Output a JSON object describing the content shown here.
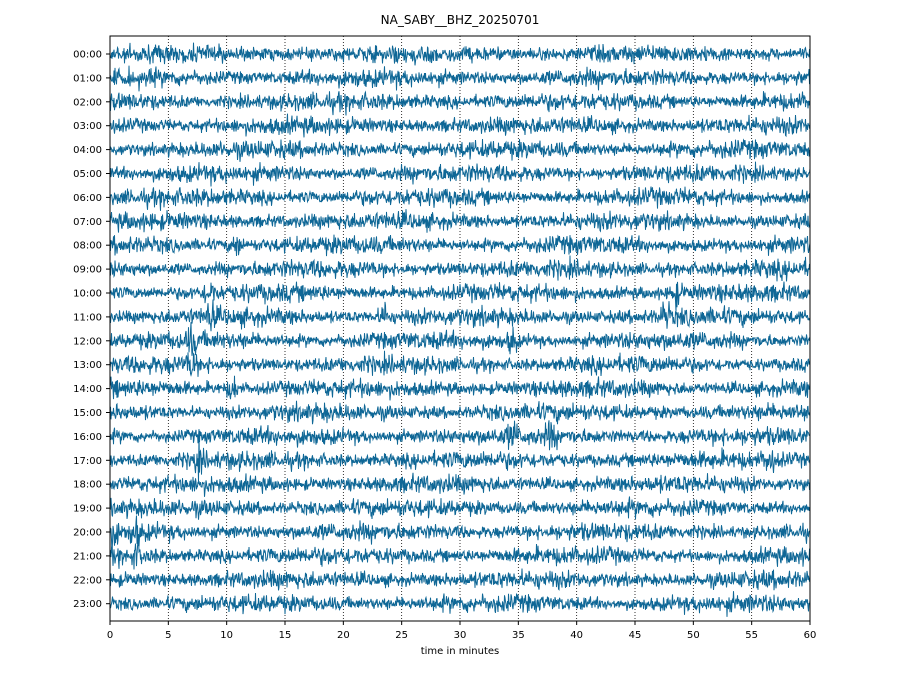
{
  "chart_data": {
    "type": "line",
    "title": "NA_SABY__BHZ_20250701",
    "xlabel": "time in minutes",
    "ylabel": "",
    "xlim": [
      0,
      60
    ],
    "x_ticks": [
      0,
      5,
      10,
      15,
      20,
      25,
      30,
      35,
      40,
      45,
      50,
      55,
      60
    ],
    "y_tick_labels": [
      "00:00",
      "01:00",
      "02:00",
      "03:00",
      "04:00",
      "05:00",
      "06:00",
      "07:00",
      "08:00",
      "09:00",
      "10:00",
      "11:00",
      "12:00",
      "13:00",
      "14:00",
      "15:00",
      "16:00",
      "17:00",
      "18:00",
      "19:00",
      "20:00",
      "21:00",
      "22:00",
      "23:00"
    ],
    "grid": "vertical dotted at each x tick",
    "trace_color": "#0f6796",
    "series": [
      {
        "name": "00:00",
        "events": []
      },
      {
        "name": "01:00",
        "events": []
      },
      {
        "name": "02:00",
        "events": []
      },
      {
        "name": "03:00",
        "events": []
      },
      {
        "name": "04:00",
        "events": []
      },
      {
        "name": "05:00",
        "events": []
      },
      {
        "name": "06:00",
        "events": []
      },
      {
        "name": "07:00",
        "events": []
      },
      {
        "name": "08:00",
        "events": [
          10.8
        ]
      },
      {
        "name": "09:00",
        "events": []
      },
      {
        "name": "10:00",
        "events": [
          8.5,
          48.5
        ]
      },
      {
        "name": "11:00",
        "events": [
          8.6,
          23.5,
          47.6
        ]
      },
      {
        "name": "12:00",
        "events": [
          7.0,
          34.5
        ]
      },
      {
        "name": "13:00",
        "events": [
          7.0
        ]
      },
      {
        "name": "14:00",
        "events": [
          10.5
        ]
      },
      {
        "name": "15:00",
        "events": []
      },
      {
        "name": "16:00",
        "events": [
          34.5,
          37.8
        ]
      },
      {
        "name": "17:00",
        "events": [
          7.6,
          56.5
        ]
      },
      {
        "name": "18:00",
        "events": []
      },
      {
        "name": "19:00",
        "events": []
      },
      {
        "name": "20:00",
        "events": [
          0.3,
          2.2
        ]
      },
      {
        "name": "21:00",
        "events": [
          2.3
        ]
      },
      {
        "name": "22:00",
        "events": []
      },
      {
        "name": "23:00",
        "events": []
      }
    ]
  }
}
